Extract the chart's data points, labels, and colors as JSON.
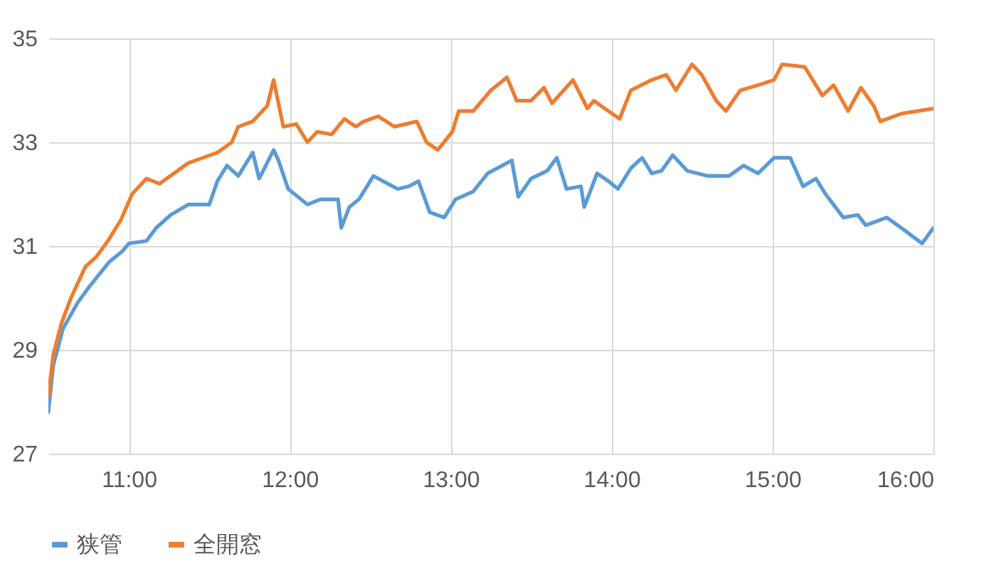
{
  "chart_data": {
    "type": "line",
    "xlim": [
      10.5,
      16
    ],
    "xticks": [
      {
        "value": 11,
        "label": "11:00"
      },
      {
        "value": 12,
        "label": "12:00"
      },
      {
        "value": 13,
        "label": "13:00"
      },
      {
        "value": 14,
        "label": "14:00"
      },
      {
        "value": 15,
        "label": "15:00"
      },
      {
        "value": 16,
        "label": "16:00"
      }
    ],
    "ylim": [
      27,
      35
    ],
    "yticks": [
      27,
      29,
      31,
      33,
      35
    ],
    "grid": true,
    "legend": "bottom",
    "marker": "none",
    "line_style": "solid",
    "series": [
      {
        "name": "狭管",
        "color": "#5b9bd5",
        "x": [
          10.5,
          10.53,
          10.59,
          10.68,
          10.75,
          10.88,
          10.96,
          11,
          11.11,
          11.17,
          11.26,
          11.37,
          11.5,
          11.55,
          11.61,
          11.68,
          11.77,
          11.81,
          11.9,
          11.93,
          11.99,
          12.11,
          12.19,
          12.3,
          12.32,
          12.37,
          12.43,
          12.52,
          12.61,
          12.67,
          12.74,
          12.8,
          12.87,
          12.96,
          13.03,
          13.14,
          13.23,
          13.32,
          13.38,
          13.42,
          13.5,
          13.6,
          13.66,
          13.72,
          13.81,
          13.83,
          13.91,
          13.98,
          14.04,
          14.12,
          14.19,
          14.25,
          14.31,
          14.38,
          14.47,
          14.6,
          14.73,
          14.82,
          14.91,
          15.01,
          15.11,
          15.19,
          15.27,
          15.33,
          15.44,
          15.53,
          15.58,
          15.71,
          15.8,
          15.93,
          16
        ],
        "values": [
          27.8,
          28.7,
          29.4,
          29.9,
          30.2,
          30.7,
          30.9,
          31.05,
          31.1,
          31.35,
          31.6,
          31.8,
          31.8,
          32.25,
          32.55,
          32.35,
          32.8,
          32.3,
          32.85,
          32.65,
          32.1,
          31.8,
          31.9,
          31.9,
          31.35,
          31.75,
          31.9,
          32.35,
          32.2,
          32.1,
          32.15,
          32.25,
          31.65,
          31.55,
          31.9,
          32.05,
          32.4,
          32.55,
          32.65,
          31.95,
          32.3,
          32.45,
          32.7,
          32.1,
          32.15,
          31.75,
          32.4,
          32.25,
          32.1,
          32.5,
          32.7,
          32.4,
          32.45,
          32.75,
          32.45,
          32.35,
          32.35,
          32.55,
          32.4,
          32.7,
          32.7,
          32.15,
          32.3,
          32,
          31.55,
          31.6,
          31.4,
          31.55,
          31.35,
          31.05,
          31.35
        ]
      },
      {
        "name": "全開窓",
        "color": "#ed7d31",
        "x": [
          10.5,
          10.53,
          10.58,
          10.64,
          10.73,
          10.8,
          10.87,
          10.95,
          11.02,
          11.11,
          11.19,
          11.28,
          11.37,
          11.46,
          11.55,
          11.64,
          11.68,
          11.77,
          11.86,
          11.9,
          11.96,
          12.04,
          12.11,
          12.17,
          12.26,
          12.34,
          12.41,
          12.46,
          12.55,
          12.65,
          12.79,
          12.85,
          12.92,
          13.01,
          13.05,
          13.14,
          13.25,
          13.35,
          13.41,
          13.5,
          13.58,
          13.63,
          13.76,
          13.85,
          13.89,
          13.98,
          14.05,
          14.12,
          14.25,
          14.34,
          14.4,
          14.5,
          14.56,
          14.65,
          14.71,
          14.8,
          14.91,
          15.01,
          15.06,
          15.2,
          15.31,
          15.38,
          15.47,
          15.55,
          15.63,
          15.67,
          15.8,
          16
        ],
        "values": [
          28.1,
          28.9,
          29.5,
          30,
          30.6,
          30.8,
          31.1,
          31.5,
          32,
          32.3,
          32.2,
          32.4,
          32.6,
          32.7,
          32.8,
          33,
          33.3,
          33.4,
          33.7,
          34.2,
          33.3,
          33.35,
          33,
          33.2,
          33.15,
          33.45,
          33.3,
          33.4,
          33.5,
          33.3,
          33.4,
          33,
          32.85,
          33.2,
          33.6,
          33.6,
          34,
          34.25,
          33.8,
          33.8,
          34.05,
          33.75,
          34.2,
          33.65,
          33.8,
          33.6,
          33.45,
          34,
          34.2,
          34.3,
          34,
          34.5,
          34.3,
          33.8,
          33.6,
          34,
          34.1,
          34.2,
          34.5,
          34.45,
          33.9,
          34.1,
          33.6,
          34.05,
          33.7,
          33.4,
          33.55,
          33.65
        ]
      }
    ]
  }
}
